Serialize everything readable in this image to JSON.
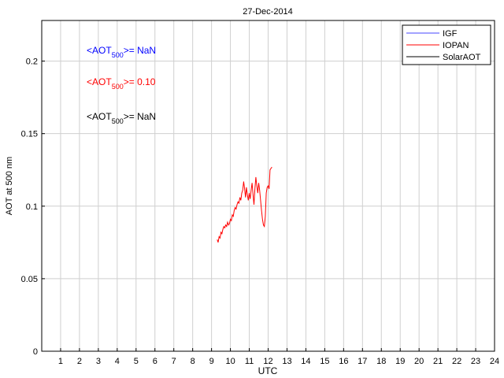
{
  "chart_data": {
    "type": "line",
    "title": "27-Dec-2014",
    "xlabel": "UTC",
    "ylabel": "AOT at 500 nm",
    "xlim": [
      0,
      24
    ],
    "ylim": [
      0,
      0.228
    ],
    "xticks": [
      1,
      2,
      3,
      4,
      5,
      6,
      7,
      8,
      9,
      10,
      11,
      12,
      13,
      14,
      15,
      16,
      17,
      18,
      19,
      20,
      21,
      22,
      23,
      24
    ],
    "yticks": [
      0,
      0.05,
      0.1,
      0.15,
      0.2
    ],
    "ytick_labels": [
      "0",
      "0.05",
      "0.1",
      "0.15",
      "0.2"
    ],
    "grid": true,
    "legend_position": "top-right",
    "series": [
      {
        "name": "IGF",
        "color": "#4444ff",
        "x": [],
        "y": []
      },
      {
        "name": "IOPAN",
        "color": "#ff0000",
        "x": [
          9.3,
          9.35,
          9.4,
          9.45,
          9.5,
          9.55,
          9.6,
          9.65,
          9.7,
          9.75,
          9.8,
          9.85,
          9.9,
          9.95,
          10.0,
          10.05,
          10.1,
          10.15,
          10.2,
          10.25,
          10.3,
          10.35,
          10.4,
          10.45,
          10.5,
          10.55,
          10.6,
          10.65,
          10.7,
          10.75,
          10.8,
          10.85,
          10.9,
          10.95,
          11.0,
          11.05,
          11.1,
          11.15,
          11.2,
          11.25,
          11.3,
          11.35,
          11.4,
          11.45,
          11.5,
          11.55,
          11.6,
          11.65,
          11.7,
          11.75,
          11.8,
          11.85,
          11.9,
          11.95,
          12.0,
          12.05,
          12.1,
          12.15,
          12.2
        ],
        "y": [
          0.077,
          0.075,
          0.079,
          0.078,
          0.082,
          0.081,
          0.084,
          0.086,
          0.085,
          0.087,
          0.086,
          0.089,
          0.087,
          0.088,
          0.091,
          0.09,
          0.094,
          0.093,
          0.097,
          0.099,
          0.098,
          0.101,
          0.103,
          0.102,
          0.106,
          0.104,
          0.109,
          0.111,
          0.117,
          0.112,
          0.106,
          0.113,
          0.108,
          0.104,
          0.109,
          0.105,
          0.111,
          0.116,
          0.108,
          0.101,
          0.112,
          0.12,
          0.114,
          0.109,
          0.116,
          0.111,
          0.104,
          0.097,
          0.091,
          0.087,
          0.086,
          0.093,
          0.109,
          0.113,
          0.114,
          0.112,
          0.125,
          0.126,
          0.127
        ]
      },
      {
        "name": "SolarAOT",
        "color": "#000000",
        "x": [],
        "y": []
      }
    ],
    "annotations": [
      {
        "prefix": "<AOT",
        "sub": "500",
        "suffix": ">=  NaN",
        "color": "#0000ff"
      },
      {
        "prefix": "<AOT",
        "sub": "500",
        "suffix": ">= 0.10",
        "color": "#ff0000"
      },
      {
        "prefix": "<AOT",
        "sub": "500",
        "suffix": ">=  NaN",
        "color": "#000000"
      }
    ]
  }
}
